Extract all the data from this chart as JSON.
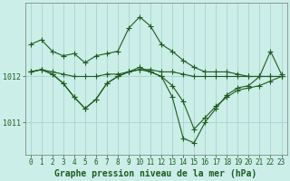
{
  "title": "Graphe pression niveau de la mer (hPa)",
  "background_color": "#cceee8",
  "grid_color": "#aad8d2",
  "line_color": "#1e5c1e",
  "xlim": [
    -0.5,
    23.5
  ],
  "ylim": [
    1010.3,
    1013.6
  ],
  "yticks": [
    1011,
    1012
  ],
  "xticks": [
    0,
    1,
    2,
    3,
    4,
    5,
    6,
    7,
    8,
    9,
    10,
    11,
    12,
    13,
    14,
    15,
    16,
    17,
    18,
    19,
    20,
    21,
    22,
    23
  ],
  "series": [
    {
      "x": [
        0,
        1,
        2,
        3,
        4,
        5,
        6,
        7,
        8,
        9,
        10,
        11,
        12,
        13,
        14,
        15,
        16,
        17,
        18,
        19,
        20,
        21,
        22,
        23
      ],
      "y": [
        1012.7,
        1012.8,
        1012.55,
        1012.45,
        1012.5,
        1012.3,
        1012.45,
        1012.5,
        1012.55,
        1013.05,
        1013.3,
        1013.1,
        1012.7,
        1012.55,
        1012.35,
        1012.2,
        1012.1,
        1012.1,
        1012.1,
        1012.05,
        1012.0,
        1012.0,
        1012.0,
        1012.0
      ]
    },
    {
      "x": [
        0,
        1,
        2,
        3,
        4,
        5,
        6,
        7,
        8,
        9,
        10,
        11,
        12,
        13,
        14,
        15,
        16,
        17,
        18,
        19,
        20,
        21,
        22,
        23
      ],
      "y": [
        1012.1,
        1012.15,
        1012.1,
        1012.05,
        1012.0,
        1012.0,
        1012.0,
        1012.05,
        1012.05,
        1012.1,
        1012.15,
        1012.15,
        1012.1,
        1012.1,
        1012.05,
        1012.0,
        1012.0,
        1012.0,
        1012.0,
        1012.0,
        1012.0,
        1012.0,
        1012.0,
        1012.0
      ]
    },
    {
      "x": [
        0,
        1,
        2,
        3,
        4,
        5,
        6,
        7,
        8,
        9,
        10,
        11,
        12,
        13,
        14,
        15,
        16,
        17,
        18,
        19,
        20,
        21,
        22,
        23
      ],
      "y": [
        1012.1,
        1012.15,
        1012.05,
        1011.85,
        1011.55,
        1011.3,
        1011.5,
        1011.85,
        1012.0,
        1012.1,
        1012.15,
        1012.1,
        1012.0,
        1011.8,
        1011.45,
        1010.85,
        1011.1,
        1011.35,
        1011.55,
        1011.7,
        1011.75,
        1011.8,
        1011.9,
        1012.0
      ]
    },
    {
      "x": [
        0,
        1,
        2,
        3,
        4,
        5,
        6,
        7,
        8,
        9,
        10,
        11,
        12,
        13,
        14,
        15,
        16,
        17,
        18,
        19,
        20,
        21,
        22,
        23
      ],
      "y": [
        1012.1,
        1012.15,
        1012.05,
        1011.85,
        1011.55,
        1011.3,
        1011.5,
        1011.85,
        1012.0,
        1012.1,
        1012.2,
        1012.1,
        1012.0,
        1011.55,
        1010.65,
        1010.55,
        1011.0,
        1011.3,
        1011.6,
        1011.75,
        1011.8,
        1012.0,
        1012.55,
        1012.05
      ]
    }
  ],
  "marker": "+",
  "markersize": 4.0,
  "linewidth": 0.8,
  "title_fontsize": 7.0,
  "tick_fontsize": 5.5,
  "figsize": [
    3.2,
    2.0
  ],
  "dpi": 100
}
